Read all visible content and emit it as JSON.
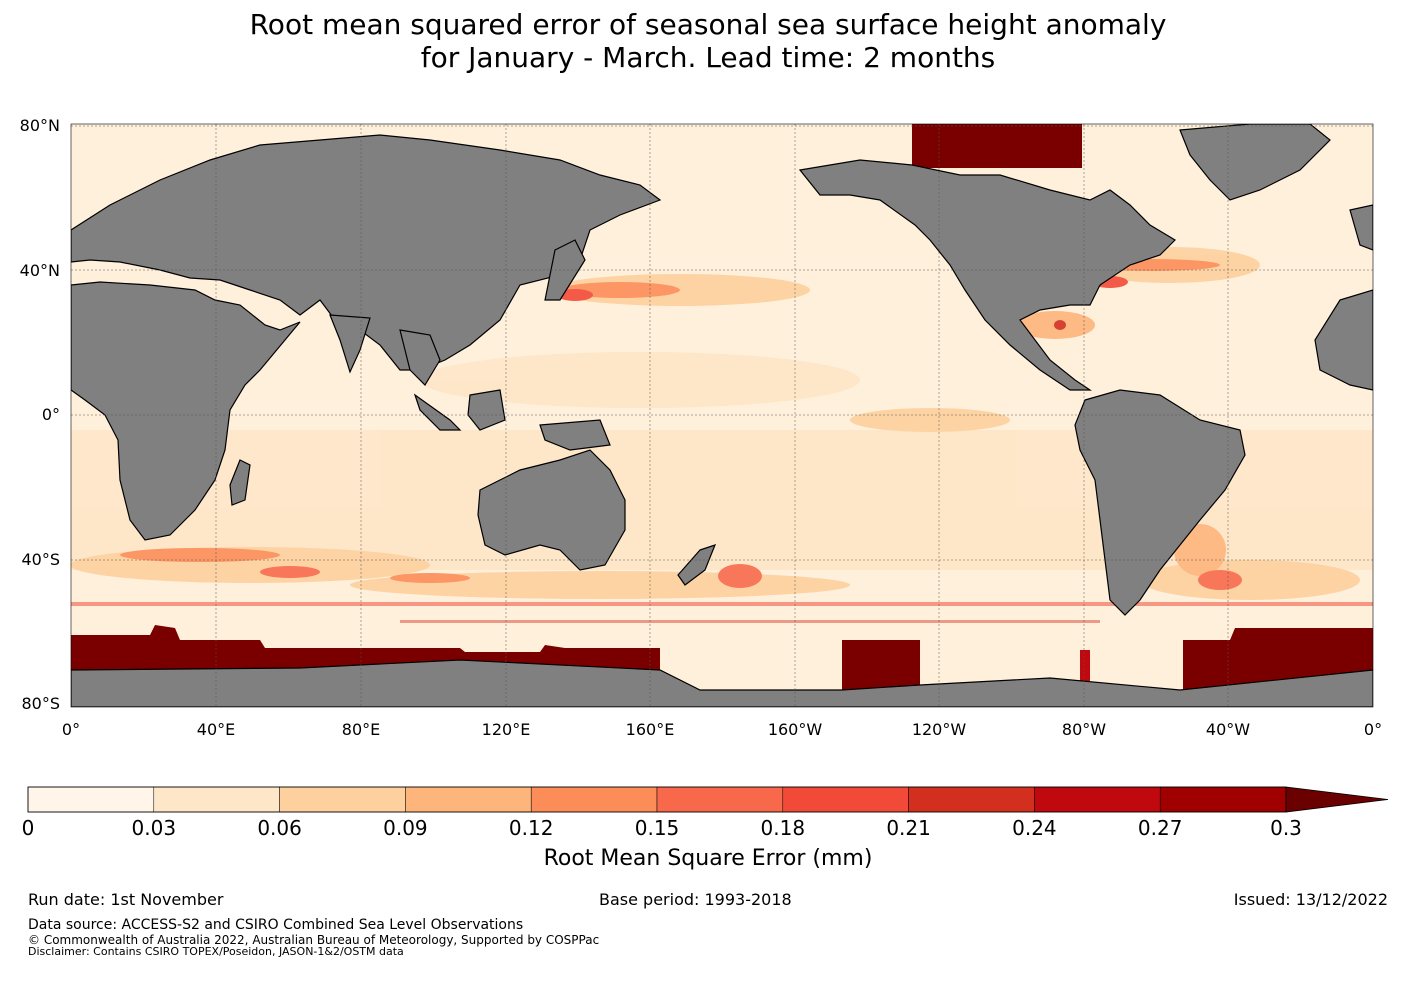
{
  "title": {
    "line1": "Root mean squared error of seasonal sea surface height anomaly",
    "line2": "for January - March. Lead time: 2 months"
  },
  "map": {
    "lat_labels": [
      "80°N",
      "40°N",
      "0°",
      "40°S",
      "80°S"
    ],
    "lon_labels": [
      "0°",
      "40°E",
      "80°E",
      "120°E",
      "160°E",
      "160°W",
      "120°W",
      "80°W",
      "40°W",
      "0°"
    ],
    "land_color": "#808080",
    "ocean_base_color": "#fff0dc"
  },
  "colorbar": {
    "ticks": [
      "0",
      "0.03",
      "0.06",
      "0.09",
      "0.12",
      "0.15",
      "0.18",
      "0.21",
      "0.24",
      "0.27",
      "0.3"
    ],
    "colors": [
      "#fff5e8",
      "#fee6c8",
      "#fdd09e",
      "#fdb57c",
      "#fc8d59",
      "#f8694b",
      "#f24a38",
      "#d32f1f",
      "#c0080f",
      "#a00000",
      "#7a0000"
    ],
    "extend_color": "#6b0000",
    "label": "Root Mean Square Error (mm)"
  },
  "meta": {
    "run_date": "Run date: 1st November",
    "base_period": "Base period: 1993-2018",
    "issued": "Issued: 13/12/2022"
  },
  "footer": {
    "data_source": "Data source: ACCESS-S2 and CSIRO Combined Sea Level Observations",
    "copyright": "© Commonwealth of Australia 2022, Australian Bureau of Meteorology, Supported by COSPPac",
    "disclaimer": "Disclaimer: Contains CSIRO TOPEX/Poseidon, JASON-1&2/OSTM data"
  }
}
